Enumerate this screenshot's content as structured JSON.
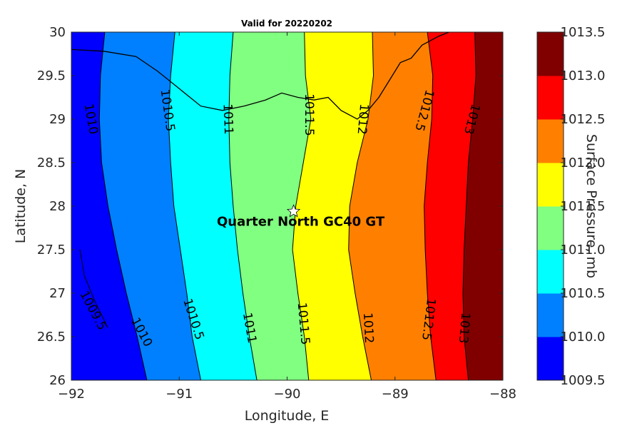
{
  "chart_data": {
    "type": "contour",
    "title": "Valid for 20220202",
    "xlabel": "Longitude, E",
    "ylabel": "Latitude, N",
    "colorbar_label": "Surface Pressure, mb",
    "xlim": [
      -92,
      -88
    ],
    "ylim": [
      26,
      30
    ],
    "xticks": [
      -92,
      -91,
      -90,
      -89,
      -88
    ],
    "yticks": [
      26,
      26.5,
      27,
      27.5,
      28,
      28.5,
      29,
      29.5,
      30
    ],
    "xtick_labels": [
      "−92",
      "−91",
      "−90",
      "−89",
      "−88"
    ],
    "ytick_labels": [
      "26",
      "26.5",
      "27",
      "27.5",
      "28",
      "28.5",
      "29",
      "29.5",
      "30"
    ],
    "levels": [
      1009.5,
      1010.0,
      1010.5,
      1011.0,
      1011.5,
      1012.0,
      1012.5,
      1013.0,
      1013.5
    ],
    "colorbar_tick_labels": [
      "1009.5",
      "1010.0",
      "1010.5",
      "1011.0",
      "1011.5",
      "1012.0",
      "1012.5",
      "1013.0",
      "1013.5"
    ],
    "colors": [
      "#0000ff",
      "#0080ff",
      "#00ffff",
      "#80ff80",
      "#ffff00",
      "#ff8000",
      "#ff0000",
      "#800000"
    ],
    "contour_lines": [
      {
        "value": "1010",
        "points": [
          [
            -91.69,
            30
          ],
          [
            -91.73,
            29.5
          ],
          [
            -91.74,
            29
          ],
          [
            -91.72,
            28.5
          ],
          [
            -91.66,
            28
          ],
          [
            -91.58,
            27.5
          ],
          [
            -91.49,
            27
          ],
          [
            -91.39,
            26.5
          ],
          [
            -91.3,
            26
          ]
        ]
      },
      {
        "value": "1010.5",
        "points": [
          [
            -91.04,
            30
          ],
          [
            -91.08,
            29.5
          ],
          [
            -91.1,
            29
          ],
          [
            -91.08,
            28.5
          ],
          [
            -91.05,
            28
          ],
          [
            -90.99,
            27.5
          ],
          [
            -90.93,
            27
          ],
          [
            -90.88,
            26.5
          ],
          [
            -90.8,
            26
          ]
        ]
      },
      {
        "value": "1011",
        "points": [
          [
            -90.5,
            30
          ],
          [
            -90.53,
            29.5
          ],
          [
            -90.54,
            29
          ],
          [
            -90.53,
            28.5
          ],
          [
            -90.5,
            28
          ],
          [
            -90.46,
            27.5
          ],
          [
            -90.41,
            27
          ],
          [
            -90.35,
            26.5
          ],
          [
            -90.28,
            26
          ]
        ]
      },
      {
        "value": "1011.5",
        "points": [
          [
            -89.84,
            30
          ],
          [
            -89.83,
            29.5
          ],
          [
            -89.78,
            29
          ],
          [
            -89.85,
            28.5
          ],
          [
            -89.92,
            28
          ],
          [
            -89.95,
            27.5
          ],
          [
            -89.9,
            27
          ],
          [
            -89.84,
            26.5
          ],
          [
            -89.8,
            26
          ]
        ]
      },
      {
        "value": "1012",
        "points": [
          [
            -89.21,
            30
          ],
          [
            -89.2,
            29.5
          ],
          [
            -89.25,
            29
          ],
          [
            -89.35,
            28.5
          ],
          [
            -89.42,
            28
          ],
          [
            -89.43,
            27.5
          ],
          [
            -89.37,
            27
          ],
          [
            -89.3,
            26.5
          ],
          [
            -89.22,
            26
          ]
        ]
      },
      {
        "value": "1012.5",
        "points": [
          [
            -88.7,
            30
          ],
          [
            -88.65,
            29.5
          ],
          [
            -88.66,
            29
          ],
          [
            -88.7,
            28.5
          ],
          [
            -88.73,
            28
          ],
          [
            -88.72,
            27.5
          ],
          [
            -88.7,
            27
          ],
          [
            -88.67,
            26.5
          ],
          [
            -88.62,
            26
          ]
        ]
      },
      {
        "value": "1013",
        "points": [
          [
            -88.26,
            30
          ],
          [
            -88.25,
            29.5
          ],
          [
            -88.28,
            29
          ],
          [
            -88.32,
            28.5
          ],
          [
            -88.34,
            28
          ],
          [
            -88.36,
            27.5
          ],
          [
            -88.37,
            27
          ],
          [
            -88.36,
            26.5
          ],
          [
            -88.32,
            26
          ]
        ]
      },
      {
        "value": "1009.5",
        "points": [
          [
            -91.92,
            27.5
          ],
          [
            -91.88,
            27.2
          ],
          [
            -91.78,
            26.9
          ],
          [
            -91.66,
            26.6
          ]
        ]
      }
    ],
    "contour_labels": [
      {
        "text": "1010",
        "x": -91.82,
        "y": 29.0,
        "angle": 80
      },
      {
        "text": "1010.5",
        "x": -91.11,
        "y": 29.1,
        "angle": 82
      },
      {
        "text": "1011",
        "x": -90.55,
        "y": 29.0,
        "angle": 88
      },
      {
        "text": "1011.5",
        "x": -89.8,
        "y": 29.05,
        "angle": 90
      },
      {
        "text": "1012",
        "x": -89.3,
        "y": 29.0,
        "angle": 95
      },
      {
        "text": "1012.5",
        "x": -88.73,
        "y": 29.1,
        "angle": 105
      },
      {
        "text": "1013",
        "x": -88.29,
        "y": 29.0,
        "angle": 105
      },
      {
        "text": "1009.5",
        "x": -91.8,
        "y": 26.8,
        "angle": 62
      },
      {
        "text": "1010",
        "x": -91.35,
        "y": 26.55,
        "angle": 62
      },
      {
        "text": "1010.5",
        "x": -90.87,
        "y": 26.7,
        "angle": 72
      },
      {
        "text": "1011",
        "x": -90.35,
        "y": 26.6,
        "angle": 80
      },
      {
        "text": "1011.5",
        "x": -89.85,
        "y": 26.65,
        "angle": 85
      },
      {
        "text": "1012",
        "x": -89.25,
        "y": 26.6,
        "angle": 87
      },
      {
        "text": "1012.5",
        "x": -88.69,
        "y": 26.7,
        "angle": 97
      },
      {
        "text": "1013",
        "x": -88.36,
        "y": 26.6,
        "angle": 95
      }
    ],
    "coastline": [
      [
        -92,
        29.8
      ],
      [
        -91.7,
        29.78
      ],
      [
        -91.4,
        29.72
      ],
      [
        -91.2,
        29.55
      ],
      [
        -91.0,
        29.35
      ],
      [
        -90.8,
        29.15
      ],
      [
        -90.6,
        29.1
      ],
      [
        -90.4,
        29.15
      ],
      [
        -90.2,
        29.22
      ],
      [
        -90.05,
        29.3
      ],
      [
        -89.9,
        29.25
      ],
      [
        -89.75,
        29.22
      ],
      [
        -89.62,
        29.25
      ],
      [
        -89.5,
        29.1
      ],
      [
        -89.35,
        29.0
      ],
      [
        -89.25,
        29.1
      ],
      [
        -89.15,
        29.25
      ],
      [
        -89.05,
        29.45
      ],
      [
        -88.95,
        29.65
      ],
      [
        -88.85,
        29.7
      ],
      [
        -88.75,
        29.85
      ],
      [
        -88.6,
        29.95
      ],
      [
        -88.5,
        30.0
      ]
    ],
    "marker": {
      "label": "Quarter North GC40 GT",
      "lon": -89.94,
      "lat": 27.94
    }
  }
}
